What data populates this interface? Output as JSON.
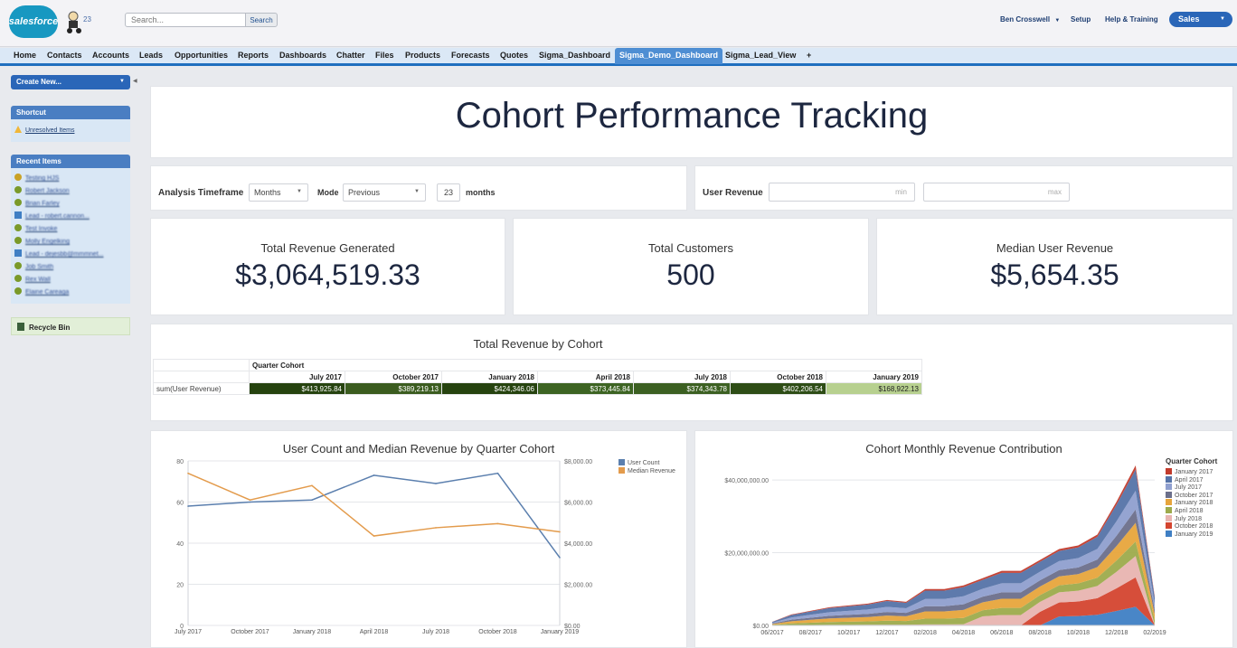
{
  "header": {
    "logo_text": "salesforce",
    "notif_count": "23",
    "search_placeholder": "Search...",
    "search_button": "Search",
    "user_name": "Ben Crosswell",
    "setup": "Setup",
    "help": "Help & Training",
    "app_name": "Sales"
  },
  "tabs": [
    "Home",
    "Contacts",
    "Accounts",
    "Leads",
    "Opportunities",
    "Reports",
    "Dashboards",
    "Chatter",
    "Files",
    "Products",
    "Forecasts",
    "Quotes",
    "Sigma_Dashboard",
    "Sigma_Demo_Dashboard",
    "Sigma_Lead_View",
    "+"
  ],
  "active_tab": "Sigma_Demo_Dashboard",
  "sidebar": {
    "create_new": "Create New...",
    "shortcut_title": "Shortcut",
    "shortcut_item": "Unresolved Items",
    "recent_title": "Recent Items",
    "recent_items": [
      "Testing HJS",
      "Robert Jackson",
      "Brian Farley",
      "Lead - robert.cannon...",
      "Test Invoke",
      "Molly Engelking",
      "Lead - dejesbb@mmmnet...",
      "Job Smith",
      "Rex Wall",
      "Elaine Careaga"
    ],
    "recycle_bin": "Recycle Bin"
  },
  "dashboard": {
    "title": "Cohort Performance Tracking",
    "controls": {
      "timeframe_label": "Analysis Timeframe",
      "unit_value": "Months",
      "mode_label": "Mode",
      "mode_value": "Previous",
      "count_value": "23",
      "count_unit": "months",
      "revenue_label": "User Revenue",
      "min_placeholder": "min",
      "max_placeholder": "max"
    },
    "kpis": [
      {
        "label": "Total Revenue Generated",
        "value": "$3,064,519.33"
      },
      {
        "label": "Total Customers",
        "value": "500"
      },
      {
        "label": "Median User Revenue",
        "value": "$5,654.35"
      }
    ],
    "pivot": {
      "title": "Total Revenue by Cohort",
      "group_label": "Quarter Cohort",
      "row_label": "sum(User Revenue)",
      "columns": [
        "July 2017",
        "October 2017",
        "January 2018",
        "April 2018",
        "July 2018",
        "October 2018",
        "January 2019"
      ],
      "values": [
        "$413,925.84",
        "$389,219.13",
        "$424,346.06",
        "$373,445.84",
        "$374,343.78",
        "$402,206.54",
        "$168,922.13"
      ],
      "colors": [
        "#26430f",
        "#3b5c1f",
        "#26430f",
        "#3d6423",
        "#3c6022",
        "#2e4d16",
        "#b7d08f"
      ]
    }
  },
  "chart_data": [
    {
      "type": "line",
      "title": "User Count and Median Revenue by Quarter Cohort",
      "categories": [
        "July 2017",
        "October 2017",
        "January 2018",
        "April 2018",
        "July 2018",
        "October 2018",
        "January 2019"
      ],
      "series": [
        {
          "name": "User Count",
          "axis": "left",
          "color": "#5b7fae",
          "values": [
            58,
            60,
            61,
            73,
            69,
            74,
            33
          ]
        },
        {
          "name": "Median Revenue",
          "axis": "right",
          "color": "#e39b4c",
          "values": [
            7400,
            6100,
            6800,
            4350,
            4750,
            4950,
            4550
          ]
        }
      ],
      "left_ticks": [
        "80",
        "60",
        "40",
        "20",
        "0"
      ],
      "right_ticks": [
        "$8,000.00",
        "$6,000.00",
        "$4,000.00",
        "$2,000.00",
        "$0.00"
      ],
      "ylim_left": [
        0,
        80
      ],
      "ylim_right": [
        0,
        8000
      ],
      "legend_position": "top-right"
    },
    {
      "type": "area",
      "title": "Cohort Monthly Revenue Contribution",
      "legend_title": "Quarter Cohort",
      "x_ticks": [
        "06/2017",
        "08/2017",
        "10/2017",
        "12/2017",
        "02/2018",
        "04/2018",
        "06/2018",
        "08/2018",
        "10/2018",
        "12/2018",
        "02/2019"
      ],
      "y_ticks": [
        "$40,000,000.00",
        "$20,000,000.00",
        "$0.00"
      ],
      "ylim": [
        0,
        45000000
      ],
      "stacked": true,
      "legend_position": "right",
      "series": [
        {
          "name": "January 2017",
          "color": "#c23b2c"
        },
        {
          "name": "April 2017",
          "color": "#5573a8"
        },
        {
          "name": "July 2017",
          "color": "#8f9fcf"
        },
        {
          "name": "October 2017",
          "color": "#6b6f8b"
        },
        {
          "name": "January 2018",
          "color": "#e7a53c"
        },
        {
          "name": "April 2018",
          "color": "#9dab4c"
        },
        {
          "name": "July 2018",
          "color": "#e8b4b0"
        },
        {
          "name": "October 2018",
          "color": "#d4452f"
        },
        {
          "name": "January 2019",
          "color": "#3f7fc4"
        }
      ]
    }
  ]
}
